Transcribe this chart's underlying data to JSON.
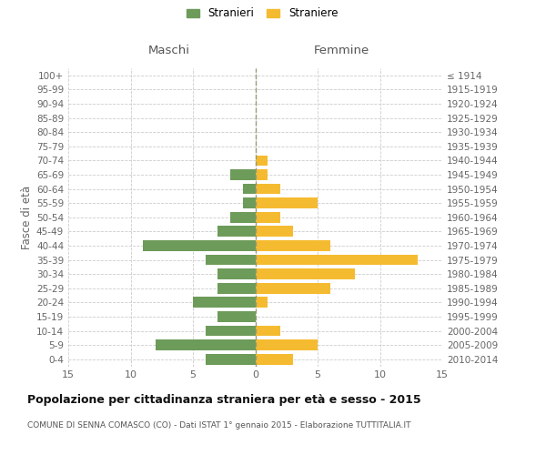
{
  "age_groups": [
    "0-4",
    "5-9",
    "10-14",
    "15-19",
    "20-24",
    "25-29",
    "30-34",
    "35-39",
    "40-44",
    "45-49",
    "50-54",
    "55-59",
    "60-64",
    "65-69",
    "70-74",
    "75-79",
    "80-84",
    "85-89",
    "90-94",
    "95-99",
    "100+"
  ],
  "birth_years": [
    "2010-2014",
    "2005-2009",
    "2000-2004",
    "1995-1999",
    "1990-1994",
    "1985-1989",
    "1980-1984",
    "1975-1979",
    "1970-1974",
    "1965-1969",
    "1960-1964",
    "1955-1959",
    "1950-1954",
    "1945-1949",
    "1940-1944",
    "1935-1939",
    "1930-1934",
    "1925-1929",
    "1920-1924",
    "1915-1919",
    "≤ 1914"
  ],
  "maschi": [
    4,
    8,
    4,
    3,
    5,
    3,
    3,
    4,
    9,
    3,
    2,
    1,
    1,
    2,
    0,
    0,
    0,
    0,
    0,
    0,
    0
  ],
  "femmine": [
    3,
    5,
    2,
    0,
    1,
    6,
    8,
    13,
    6,
    3,
    2,
    5,
    2,
    1,
    1,
    0,
    0,
    0,
    0,
    0,
    0
  ],
  "maschi_color": "#6d9b5a",
  "femmine_color": "#f5bb30",
  "background_color": "#ffffff",
  "grid_color": "#cccccc",
  "title": "Popolazione per cittadinanza straniera per età e sesso - 2015",
  "subtitle": "COMUNE DI SENNA COMASCO (CO) - Dati ISTAT 1° gennaio 2015 - Elaborazione TUTTITALIA.IT",
  "xlabel_left": "Maschi",
  "xlabel_right": "Femmine",
  "ylabel_left": "Fasce di età",
  "legend_maschi": "Stranieri",
  "legend_femmine": "Straniere",
  "xlim": 15,
  "bar_height": 0.75
}
